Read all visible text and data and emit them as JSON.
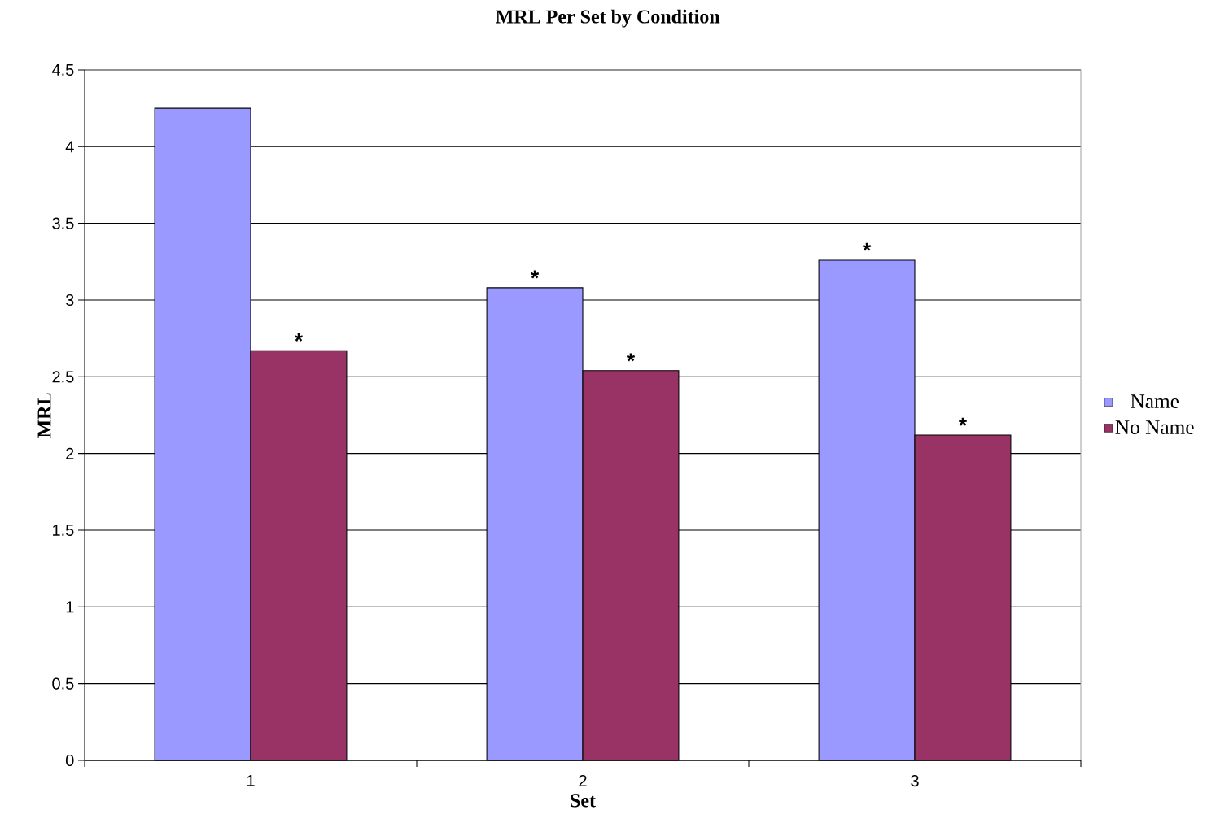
{
  "chart_data": {
    "type": "bar",
    "title": "MRL Per Set by Condition",
    "xlabel": "Set",
    "ylabel": "MRL",
    "categories": [
      "1",
      "2",
      "3"
    ],
    "series": [
      {
        "name": "Name",
        "color": "#9999ff",
        "values": [
          4.25,
          3.08,
          3.26
        ]
      },
      {
        "name": "No Name",
        "color": "#993366",
        "values": [
          2.67,
          2.54,
          2.12
        ]
      }
    ],
    "ylim": [
      0,
      4.5
    ],
    "yticks": [
      0,
      0.5,
      1,
      1.5,
      2,
      2.5,
      3,
      3.5,
      4,
      4.5
    ],
    "grid": "y",
    "legend": "right",
    "annotations": [
      {
        "text": "*",
        "x": "1",
        "y": 2.67
      },
      {
        "text": "*",
        "x": "2",
        "y": 3.08
      },
      {
        "text": "*",
        "x": "2",
        "y": 2.54
      },
      {
        "text": "*",
        "x": "3",
        "y": 3.26
      },
      {
        "text": "*",
        "x": "3",
        "y": 2.12
      }
    ]
  }
}
